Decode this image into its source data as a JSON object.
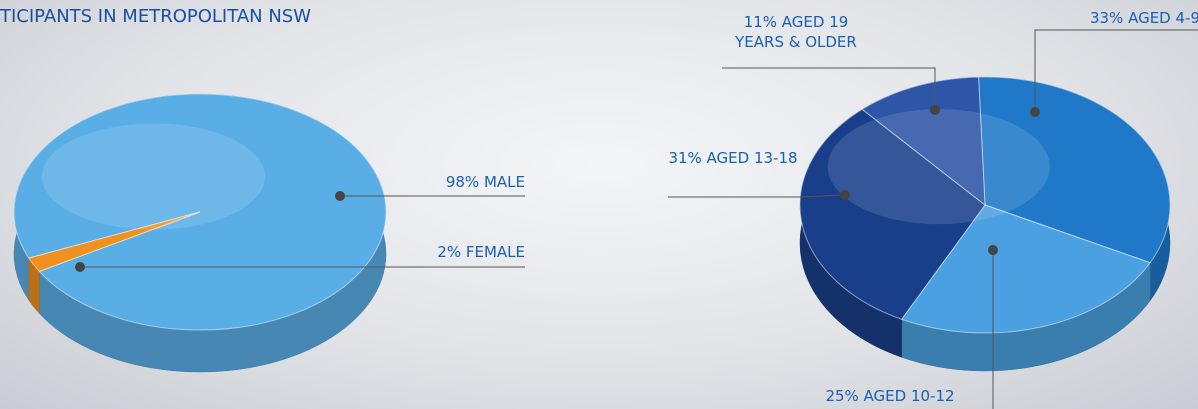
{
  "chart_data": [
    {
      "type": "pie",
      "title": "TICIPANTS IN METROPOLITAN NSW",
      "values": [
        98,
        2
      ],
      "value_labels": [
        "98% MALE",
        "2% FEMALE"
      ],
      "colors": [
        "#5aaee6",
        "#f0901e"
      ]
    },
    {
      "type": "pie",
      "values": [
        33,
        25,
        31,
        11
      ],
      "value_labels": [
        "33% AGED 4-9",
        "25% AGED 10-12",
        "31% AGED 13-18",
        "11% AGED 19 YEARS & OLDER"
      ],
      "colors": [
        "#1f78c8",
        "#4aa0e0",
        "#1a3f8a",
        "#2d55a8"
      ]
    }
  ]
}
